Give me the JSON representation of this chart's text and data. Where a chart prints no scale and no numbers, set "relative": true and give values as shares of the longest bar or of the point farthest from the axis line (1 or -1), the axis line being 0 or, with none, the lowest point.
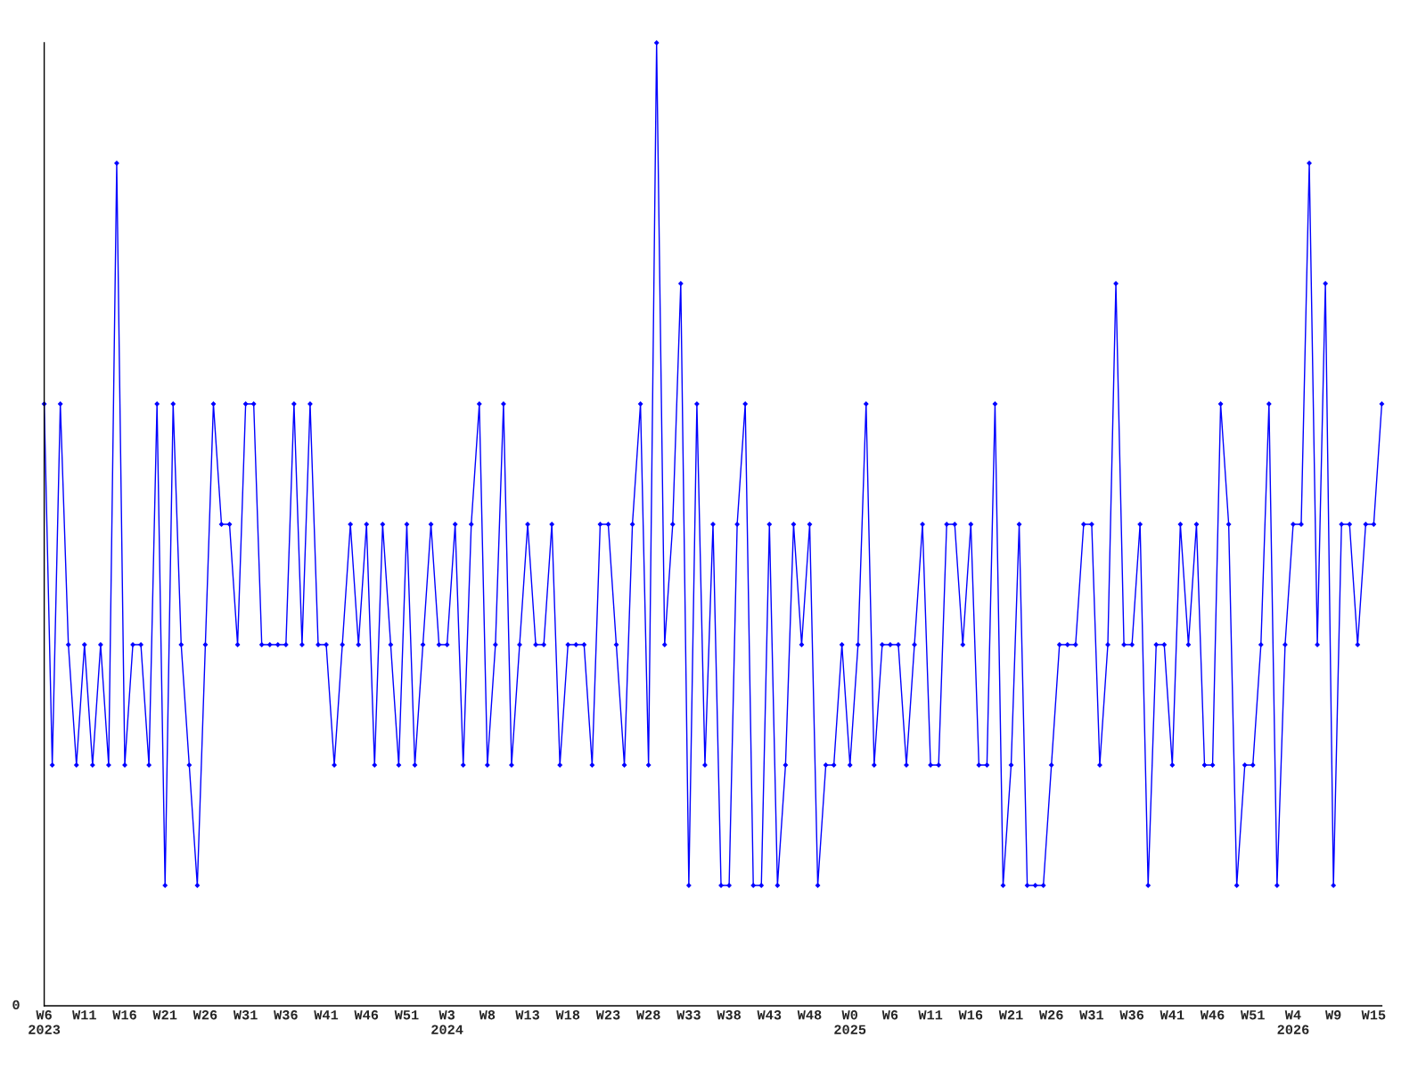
{
  "chart_data": {
    "type": "line",
    "relative": true,
    "annotations": [
      "0"
    ],
    "color": "#0000ff",
    "marker": "diamond",
    "line_style": "solid",
    "grid": false,
    "legend": false,
    "categories": [
      "W6\n2023",
      null,
      null,
      null,
      null,
      "W11",
      null,
      null,
      null,
      null,
      "W16",
      null,
      null,
      null,
      null,
      "W21",
      null,
      null,
      null,
      null,
      "W26",
      null,
      null,
      null,
      null,
      "W31",
      null,
      null,
      null,
      null,
      "W36",
      null,
      null,
      null,
      null,
      "W41",
      null,
      null,
      null,
      null,
      "W46",
      null,
      null,
      null,
      null,
      "W51",
      null,
      null,
      null,
      null,
      "W3\n2024",
      null,
      null,
      null,
      null,
      "W8",
      null,
      null,
      null,
      null,
      "W13",
      null,
      null,
      null,
      null,
      "W18",
      null,
      null,
      null,
      null,
      "W23",
      null,
      null,
      null,
      null,
      "W28",
      null,
      null,
      null,
      null,
      "W33",
      null,
      null,
      null,
      null,
      "W38",
      null,
      null,
      null,
      null,
      "W43",
      null,
      null,
      null,
      null,
      "W48",
      null,
      null,
      null,
      null,
      "W0\n2025",
      null,
      null,
      null,
      null,
      "W6",
      null,
      null,
      null,
      null,
      "W11",
      null,
      null,
      null,
      null,
      "W16",
      null,
      null,
      null,
      null,
      "W21",
      null,
      null,
      null,
      null,
      "W26",
      null,
      null,
      null,
      null,
      "W31",
      null,
      null,
      null,
      null,
      "W36",
      null,
      null,
      null,
      null,
      "W41",
      null,
      null,
      null,
      null,
      "W46",
      null,
      null,
      null,
      null,
      "W51",
      null,
      null,
      null,
      null,
      "W4\n2026",
      null,
      null,
      null,
      null,
      "W9",
      null,
      null,
      null,
      null,
      "W15",
      null
    ],
    "values": [
      0.625,
      0.25,
      0.625,
      0.375,
      0.25,
      0.375,
      0.25,
      0.375,
      0.25,
      0.875,
      0.25,
      0.375,
      0.375,
      0.25,
      0.625,
      0.125,
      0.625,
      0.375,
      0.25,
      0.125,
      0.375,
      0.625,
      0.5,
      0.5,
      0.375,
      0.625,
      0.625,
      0.375,
      0.375,
      0.375,
      0.375,
      0.625,
      0.375,
      0.625,
      0.375,
      0.375,
      0.25,
      0.375,
      0.5,
      0.375,
      0.5,
      0.25,
      0.5,
      0.375,
      0.25,
      0.5,
      0.25,
      0.375,
      0.5,
      0.375,
      0.375,
      0.5,
      0.25,
      0.5,
      0.625,
      0.25,
      0.375,
      0.625,
      0.25,
      0.375,
      0.5,
      0.375,
      0.375,
      0.5,
      0.25,
      0.375,
      0.375,
      0.375,
      0.25,
      0.5,
      0.5,
      0.375,
      0.25,
      0.5,
      0.625,
      0.25,
      1,
      0.375,
      0.5,
      0.75,
      0.125,
      0.625,
      0.25,
      0.5,
      0.125,
      0.125,
      0.5,
      0.625,
      0.125,
      0.125,
      0.5,
      0.125,
      0.25,
      0.5,
      0.375,
      0.5,
      0.125,
      0.25,
      0.25,
      0.375,
      0.25,
      0.375,
      0.625,
      0.25,
      0.375,
      0.375,
      0.375,
      0.25,
      0.375,
      0.5,
      0.25,
      0.25,
      0.5,
      0.5,
      0.375,
      0.5,
      0.25,
      0.25,
      0.625,
      0.125,
      0.25,
      0.5,
      0.125,
      0.125,
      0.125,
      0.25,
      0.375,
      0.375,
      0.375,
      0.5,
      0.5,
      0.25,
      0.375,
      0.75,
      0.375,
      0.375,
      0.5,
      0.125,
      0.375,
      0.375,
      0.25,
      0.5,
      0.375,
      0.5,
      0.25,
      0.25,
      0.625,
      0.5,
      0.125,
      0.25,
      0.25,
      0.375,
      0.625,
      0.125,
      0.375,
      0.5,
      0.5,
      0.875,
      0.375,
      0.75,
      0.125,
      0.5,
      0.5,
      0.375,
      0.5,
      0.5,
      0.625
    ]
  }
}
